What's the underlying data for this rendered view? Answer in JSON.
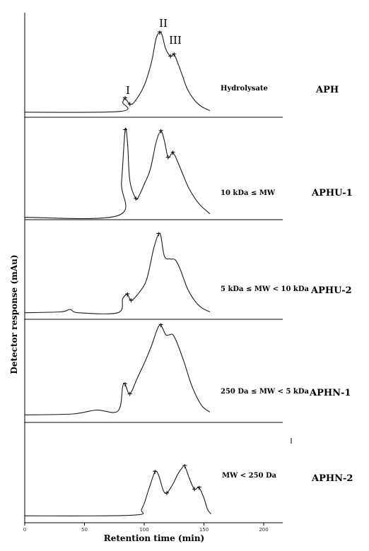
{
  "chart_data": {
    "type": "line",
    "xlabel": "Retention time (min)",
    "ylabel": "Detector response (mAu)",
    "xlim": [
      0,
      220
    ],
    "xticks": [
      0,
      50,
      100,
      150,
      200
    ],
    "grid": false,
    "legend": "none",
    "peak_labels": [
      {
        "id": "peak-1",
        "text": "I",
        "x": 84
      },
      {
        "id": "peak-2",
        "text": "II",
        "x": 114
      },
      {
        "id": "peak-3",
        "text": "III",
        "x": 125
      }
    ],
    "panels": [
      {
        "id": "APH",
        "name": "APH",
        "range": "Hydrolysate",
        "ylim": [
          0,
          1
        ],
        "x": [
          0,
          80,
          82,
          84,
          88,
          92,
          100,
          106,
          110,
          113,
          115,
          118,
          122,
          125,
          128,
          132,
          136,
          142,
          148,
          155
        ],
        "y": [
          0.01,
          0.02,
          0.13,
          0.18,
          0.11,
          0.14,
          0.34,
          0.62,
          0.92,
          0.99,
          0.96,
          0.79,
          0.7,
          0.72,
          0.62,
          0.46,
          0.3,
          0.16,
          0.08,
          0.03
        ]
      },
      {
        "id": "APHU-1",
        "name": "APHU-1",
        "range": "10 kDa ≤ MW",
        "ylim": [
          0,
          1
        ],
        "x": [
          0,
          78,
          81,
          84,
          86,
          88,
          93,
          96,
          100,
          105,
          110,
          114,
          117,
          120,
          124,
          128,
          132,
          138,
          146,
          155
        ],
        "y": [
          0.01,
          0.03,
          0.4,
          0.98,
          0.85,
          0.42,
          0.22,
          0.26,
          0.38,
          0.54,
          0.85,
          0.97,
          0.86,
          0.68,
          0.73,
          0.63,
          0.5,
          0.32,
          0.16,
          0.05
        ]
      },
      {
        "id": "APHU-2",
        "name": "APHU-2",
        "range": "5 kDa ≤ MW < 10 kDa",
        "ylim": [
          0,
          1
        ],
        "x": [
          0,
          30,
          38,
          45,
          78,
          82,
          86,
          89,
          95,
          102,
          108,
          112,
          114,
          117,
          122,
          126,
          130,
          136,
          142,
          148,
          155
        ],
        "y": [
          0.02,
          0.03,
          0.06,
          0.02,
          0.02,
          0.19,
          0.24,
          0.17,
          0.25,
          0.42,
          0.8,
          0.97,
          0.94,
          0.7,
          0.67,
          0.66,
          0.55,
          0.32,
          0.17,
          0.08,
          0.03
        ]
      },
      {
        "id": "APHN-1",
        "name": "APHN-1",
        "range": "250 Da ≤ MW < 5 kDa",
        "ylim": [
          0,
          1
        ],
        "x": [
          0,
          40,
          60,
          78,
          82,
          84,
          88,
          94,
          100,
          106,
          111,
          114,
          118,
          121,
          124,
          128,
          134,
          140,
          148,
          155
        ],
        "y": [
          0.02,
          0.03,
          0.07,
          0.06,
          0.32,
          0.34,
          0.24,
          0.4,
          0.56,
          0.74,
          0.92,
          0.96,
          0.86,
          0.86,
          0.86,
          0.76,
          0.55,
          0.32,
          0.12,
          0.05
        ]
      },
      {
        "id": "APHN-2",
        "name": "APHN-2",
        "range": "MW < 250 Da",
        "ylim": [
          0,
          1
        ],
        "x": [
          0,
          90,
          98,
          104,
          109,
          112,
          116,
          119,
          124,
          128,
          132,
          134,
          138,
          142,
          146,
          150,
          153,
          156
        ],
        "y": [
          0.02,
          0.03,
          0.13,
          0.45,
          0.71,
          0.66,
          0.42,
          0.38,
          0.52,
          0.67,
          0.78,
          0.8,
          0.6,
          0.44,
          0.46,
          0.3,
          0.12,
          0.05
        ]
      }
    ]
  }
}
